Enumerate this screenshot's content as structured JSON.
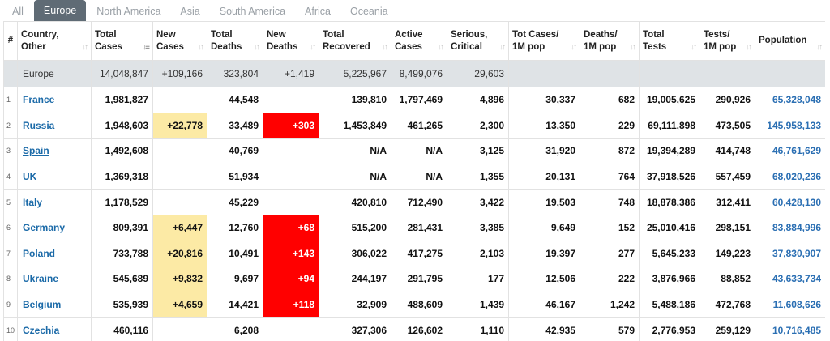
{
  "tabs": [
    "All",
    "Europe",
    "North America",
    "Asia",
    "South America",
    "Africa",
    "Oceania"
  ],
  "active_tab": 1,
  "colors": {
    "tab_active_bg": "#5f6b75",
    "new_cases_bg": "#fceaa5",
    "new_deaths_bg": "#ff0000",
    "continent_row_bg": "#dfe3e6",
    "link": "#1b6aa8"
  },
  "headers": {
    "idx": "#",
    "country": [
      "Country,",
      "Other"
    ],
    "total_cases": [
      "Total",
      "Cases"
    ],
    "new_cases": [
      "New",
      "Cases"
    ],
    "total_deaths": [
      "Total",
      "Deaths"
    ],
    "new_deaths": [
      "New",
      "Deaths"
    ],
    "total_recovered": [
      "Total",
      "Recovered"
    ],
    "active_cases": [
      "Active",
      "Cases"
    ],
    "serious": [
      "Serious,",
      "Critical"
    ],
    "cases_per_m": [
      "Tot Cases/",
      "1M pop"
    ],
    "deaths_per_m": [
      "Deaths/",
      "1M pop"
    ],
    "total_tests": [
      "Total",
      "Tests"
    ],
    "tests_per_m": [
      "Tests/",
      "1M pop"
    ],
    "population": "Population"
  },
  "continent_row": {
    "name": "Europe",
    "total_cases": "14,048,847",
    "new_cases": "+109,166",
    "total_deaths": "323,804",
    "new_deaths": "+1,419",
    "total_recovered": "5,225,967",
    "active_cases": "8,499,076",
    "serious": "29,603"
  },
  "rows": [
    {
      "idx": "1",
      "country": "France",
      "total_cases": "1,981,827",
      "new_cases": "",
      "total_deaths": "44,548",
      "new_deaths": "",
      "total_recovered": "139,810",
      "active_cases": "1,797,469",
      "serious": "4,896",
      "cases_per_m": "30,337",
      "deaths_per_m": "682",
      "total_tests": "19,005,625",
      "tests_per_m": "290,926",
      "population": "65,328,048"
    },
    {
      "idx": "2",
      "country": "Russia",
      "total_cases": "1,948,603",
      "new_cases": "+22,778",
      "total_deaths": "33,489",
      "new_deaths": "+303",
      "total_recovered": "1,453,849",
      "active_cases": "461,265",
      "serious": "2,300",
      "cases_per_m": "13,350",
      "deaths_per_m": "229",
      "total_tests": "69,111,898",
      "tests_per_m": "473,505",
      "population": "145,958,133"
    },
    {
      "idx": "3",
      "country": "Spain",
      "total_cases": "1,492,608",
      "new_cases": "",
      "total_deaths": "40,769",
      "new_deaths": "",
      "total_recovered": "N/A",
      "active_cases": "N/A",
      "serious": "3,125",
      "cases_per_m": "31,920",
      "deaths_per_m": "872",
      "total_tests": "19,394,289",
      "tests_per_m": "414,748",
      "population": "46,761,629"
    },
    {
      "idx": "4",
      "country": "UK",
      "total_cases": "1,369,318",
      "new_cases": "",
      "total_deaths": "51,934",
      "new_deaths": "",
      "total_recovered": "N/A",
      "active_cases": "N/A",
      "serious": "1,355",
      "cases_per_m": "20,131",
      "deaths_per_m": "764",
      "total_tests": "37,918,526",
      "tests_per_m": "557,459",
      "population": "68,020,236"
    },
    {
      "idx": "5",
      "country": "Italy",
      "total_cases": "1,178,529",
      "new_cases": "",
      "total_deaths": "45,229",
      "new_deaths": "",
      "total_recovered": "420,810",
      "active_cases": "712,490",
      "serious": "3,422",
      "cases_per_m": "19,503",
      "deaths_per_m": "748",
      "total_tests": "18,878,386",
      "tests_per_m": "312,411",
      "population": "60,428,130"
    },
    {
      "idx": "6",
      "country": "Germany",
      "total_cases": "809,391",
      "new_cases": "+6,447",
      "total_deaths": "12,760",
      "new_deaths": "+68",
      "total_recovered": "515,200",
      "active_cases": "281,431",
      "serious": "3,385",
      "cases_per_m": "9,649",
      "deaths_per_m": "152",
      "total_tests": "25,010,416",
      "tests_per_m": "298,151",
      "population": "83,884,996"
    },
    {
      "idx": "7",
      "country": "Poland",
      "total_cases": "733,788",
      "new_cases": "+20,816",
      "total_deaths": "10,491",
      "new_deaths": "+143",
      "total_recovered": "306,022",
      "active_cases": "417,275",
      "serious": "2,103",
      "cases_per_m": "19,397",
      "deaths_per_m": "277",
      "total_tests": "5,645,233",
      "tests_per_m": "149,223",
      "population": "37,830,907"
    },
    {
      "idx": "8",
      "country": "Ukraine",
      "total_cases": "545,689",
      "new_cases": "+9,832",
      "total_deaths": "9,697",
      "new_deaths": "+94",
      "total_recovered": "244,197",
      "active_cases": "291,795",
      "serious": "177",
      "cases_per_m": "12,506",
      "deaths_per_m": "222",
      "total_tests": "3,876,966",
      "tests_per_m": "88,852",
      "population": "43,633,734"
    },
    {
      "idx": "9",
      "country": "Belgium",
      "total_cases": "535,939",
      "new_cases": "+4,659",
      "total_deaths": "14,421",
      "new_deaths": "+118",
      "total_recovered": "32,909",
      "active_cases": "488,609",
      "serious": "1,439",
      "cases_per_m": "46,167",
      "deaths_per_m": "1,242",
      "total_tests": "5,488,186",
      "tests_per_m": "472,768",
      "population": "11,608,626"
    },
    {
      "idx": "10",
      "country": "Czechia",
      "total_cases": "460,116",
      "new_cases": "",
      "total_deaths": "6,208",
      "new_deaths": "",
      "total_recovered": "327,306",
      "active_cases": "126,602",
      "serious": "1,110",
      "cases_per_m": "42,935",
      "deaths_per_m": "579",
      "total_tests": "2,776,953",
      "tests_per_m": "259,129",
      "population": "10,716,485"
    }
  ]
}
